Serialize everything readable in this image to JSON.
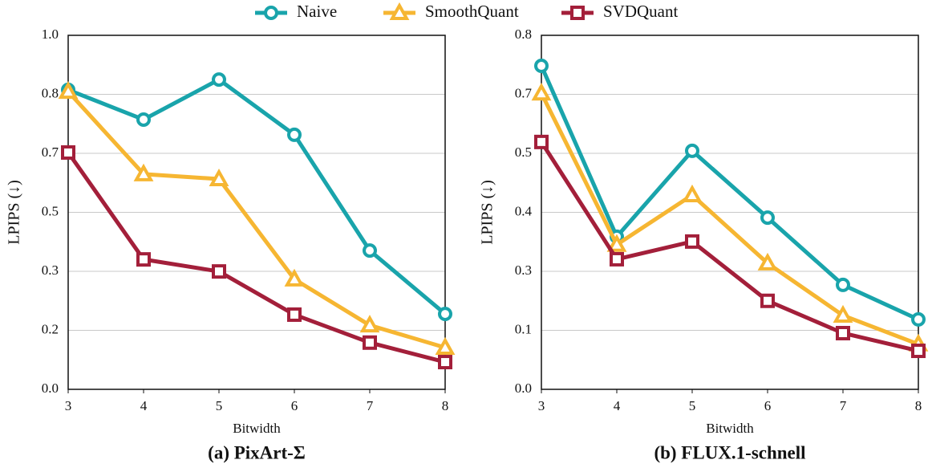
{
  "chart_data": [
    {
      "type": "line",
      "title": "(a) PixArt-Σ",
      "x_label": "Bitwidth",
      "y_label": "LPIPS (↓)",
      "x": [
        3,
        4,
        5,
        6,
        7,
        8
      ],
      "xlim": [
        3,
        8
      ],
      "xticks": [
        3,
        4,
        5,
        6,
        7,
        8
      ],
      "ylim": [
        0,
        1.0
      ],
      "yticks": [
        {
          "value": 0,
          "label": "0.0"
        },
        {
          "value": 0.1667,
          "label": "0.2"
        },
        {
          "value": 0.3333,
          "label": "0.3"
        },
        0.5,
        {
          "value": 0.6667,
          "label": "0.7"
        },
        {
          "value": 0.8333,
          "label": "0.8"
        },
        {
          "value": 1.0,
          "label": "1.0"
        }
      ],
      "grid": true,
      "series": [
        {
          "name": "Naive",
          "color": "#19a4ab",
          "marker": "circle",
          "values": [
            0.846,
            0.762,
            0.875,
            0.719,
            0.392,
            0.213
          ]
        },
        {
          "name": "SmoothQuant",
          "color": "#f6b632",
          "marker": "triangle",
          "values": [
            0.841,
            0.608,
            0.594,
            0.311,
            0.181,
            0.118
          ]
        },
        {
          "name": "SVDQuant",
          "color": "#a31f3a",
          "marker": "square",
          "values": [
            0.669,
            0.367,
            0.333,
            0.211,
            0.132,
            0.077
          ]
        }
      ]
    },
    {
      "type": "line",
      "title": "(b) FLUX.1-schnell",
      "x_label": "Bitwidth",
      "y_label": "LPIPS (↓)",
      "x": [
        3,
        4,
        5,
        6,
        7,
        8
      ],
      "xlim": [
        3,
        8
      ],
      "xticks": [
        3,
        4,
        5,
        6,
        7,
        8
      ],
      "ylim": [
        0,
        0.8
      ],
      "yticks": [
        {
          "value": 0,
          "label": "0.0"
        },
        {
          "value": 0.1333,
          "label": "0.1"
        },
        {
          "value": 0.2667,
          "label": "0.3"
        },
        0.4,
        {
          "value": 0.5333,
          "label": "0.5"
        },
        {
          "value": 0.6667,
          "label": "0.7"
        },
        0.8
      ],
      "grid": true,
      "series": [
        {
          "name": "Naive",
          "color": "#19a4ab",
          "marker": "circle",
          "values": [
            0.731,
            0.345,
            0.539,
            0.388,
            0.236,
            0.158
          ]
        },
        {
          "name": "SmoothQuant",
          "color": "#f6b632",
          "marker": "triangle",
          "values": [
            0.669,
            0.327,
            0.439,
            0.285,
            0.167,
            0.102
          ]
        },
        {
          "name": "SVDQuant",
          "color": "#a31f3a",
          "marker": "square",
          "values": [
            0.559,
            0.294,
            0.334,
            0.2,
            0.127,
            0.087
          ]
        }
      ]
    }
  ]
}
